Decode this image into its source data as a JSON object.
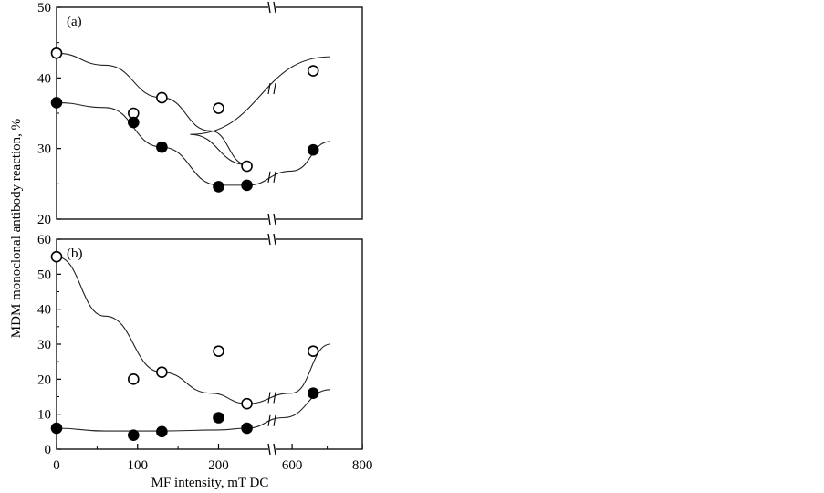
{
  "chart_data": [
    {
      "panel": "(a)",
      "type": "scatter",
      "ylim": [
        20,
        50
      ],
      "yticks": [
        20,
        30,
        40,
        50
      ],
      "axis_break": true,
      "series": [
        {
          "marker": "open-circle",
          "x": [
            0,
            95,
            130,
            200,
            235,
            660
          ],
          "y": [
            43.5,
            35,
            37.2,
            35.7,
            27.5,
            41
          ]
        },
        {
          "marker": "filled-circle",
          "x": [
            0,
            95,
            130,
            200,
            235,
            660
          ],
          "y": [
            36.5,
            33.7,
            30.2,
            24.6,
            24.8,
            29.8
          ]
        }
      ]
    },
    {
      "panel": "(b)",
      "type": "scatter",
      "ylim": [
        0,
        60
      ],
      "yticks": [
        0,
        10,
        20,
        30,
        40,
        50,
        60
      ],
      "axis_break": true,
      "series": [
        {
          "marker": "open-circle",
          "x": [
            0,
            95,
            130,
            200,
            235,
            660
          ],
          "y": [
            55,
            20,
            22,
            28,
            13,
            28
          ]
        },
        {
          "marker": "filled-circle",
          "x": [
            0,
            95,
            130,
            200,
            235,
            660
          ],
          "y": [
            6,
            4,
            5,
            9,
            6,
            16
          ]
        }
      ]
    }
  ],
  "xaxis": {
    "label": "MF intensity, mT DC",
    "ticks": [
      0,
      100,
      200,
      600,
      800
    ]
  },
  "ylabel": "MDM monoclonal antibody reaction, %",
  "colors": {
    "axis": "#000000",
    "marker_fill": "#000000",
    "marker_open": "#ffffff"
  }
}
